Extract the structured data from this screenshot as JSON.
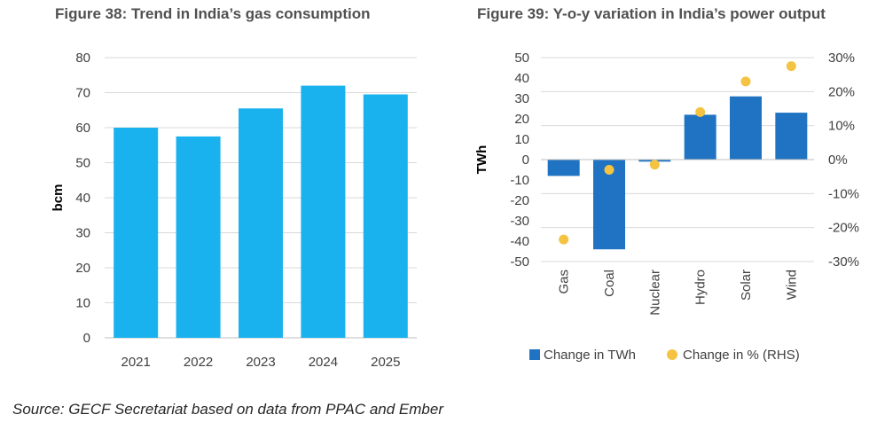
{
  "chart_data": [
    {
      "type": "bar",
      "title": "Figure 38: Trend in India’s gas consumption",
      "categories": [
        "2021",
        "2022",
        "2023",
        "2024",
        "2025"
      ],
      "values": [
        60,
        57.5,
        65.5,
        72,
        69.5
      ],
      "ylabel": "bcm",
      "xlabel": "",
      "ylim": [
        0,
        80
      ],
      "yticks": [
        0,
        10,
        20,
        30,
        40,
        50,
        60,
        70,
        80
      ],
      "grid": true,
      "color": "#1ab2ee"
    },
    {
      "type": "bar",
      "title": "Figure 39: Y-o-y variation in India’s power output",
      "categories": [
        "Gas",
        "Coal",
        "Nuclear",
        "Hydro",
        "Solar",
        "Wind"
      ],
      "series": [
        {
          "name": "Change in TWh",
          "type": "bar",
          "axis": "left",
          "color": "#1f73c2",
          "values": [
            -8,
            -44,
            -1,
            22,
            31,
            23
          ]
        },
        {
          "name": "Change in % (RHS)",
          "type": "scatter",
          "axis": "right",
          "color": "#f5c342",
          "values": [
            -23.5,
            -3,
            -1.5,
            14,
            23,
            27.5
          ]
        }
      ],
      "ylabel": "TWh",
      "ylim": [
        -50,
        50
      ],
      "yticks": [
        -50,
        -40,
        -30,
        -20,
        -10,
        0,
        10,
        20,
        30,
        40,
        50
      ],
      "y2lim": [
        -30,
        30
      ],
      "y2ticks": [
        "-30%",
        "-20%",
        "-10%",
        "0%",
        "10%",
        "20%",
        "30%"
      ],
      "y2values": [
        -30,
        -20,
        -10,
        0,
        10,
        20,
        30
      ],
      "grid": true,
      "legend": "bottom"
    }
  ],
  "source": "Source: GECF Secretariat based on data from PPAC and Ember"
}
